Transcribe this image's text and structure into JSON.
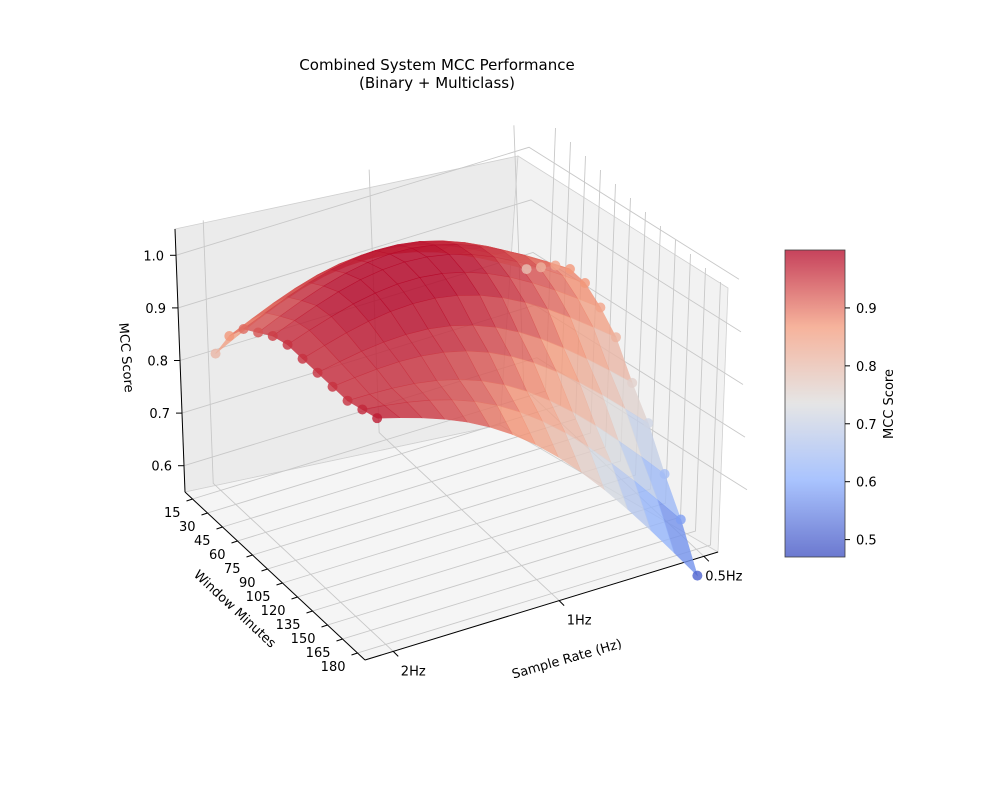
{
  "chart_data": {
    "type": "surface3d",
    "title": "Combined System MCC Performance",
    "subtitle": "(Binary + Multiclass)",
    "xlabel": "Window Minutes",
    "ylabel": "Sample Rate (Hz)",
    "zlabel": "MCC Score",
    "x_ticks": [
      15,
      30,
      45,
      60,
      75,
      90,
      105,
      120,
      135,
      150,
      165,
      180
    ],
    "y_ticks": [
      "2Hz",
      "1Hz",
      "0.5Hz"
    ],
    "z_ticks": [
      "0.6",
      "0.7",
      "0.8",
      "0.9",
      "1.0"
    ],
    "zlim": [
      0.55,
      1.05
    ],
    "grid": true,
    "colormap": "coolwarm",
    "colorbar": {
      "label": "MCC Score",
      "range": [
        0.47,
        1.0
      ],
      "ticks": [
        "0.5",
        "0.6",
        "0.7",
        "0.8",
        "0.9"
      ],
      "position": "right"
    },
    "series": [
      {
        "sample_rate": "2Hz",
        "window_minutes": [
          15,
          30,
          45,
          60,
          75,
          90,
          105,
          120,
          135,
          150,
          165,
          180
        ],
        "mcc": [
          0.81,
          0.87,
          0.91,
          0.93,
          0.95,
          0.96,
          0.96,
          0.96,
          0.96,
          0.96,
          0.97,
          0.98
        ]
      },
      {
        "sample_rate": "0.5Hz",
        "window_minutes": [
          15,
          30,
          45,
          60,
          75,
          90,
          105,
          120,
          135,
          150,
          165,
          180
        ],
        "mcc": [
          0.79,
          0.82,
          0.85,
          0.87,
          0.87,
          0.85,
          0.82,
          0.76,
          0.71,
          0.64,
          0.58,
          0.5
        ]
      }
    ]
  }
}
